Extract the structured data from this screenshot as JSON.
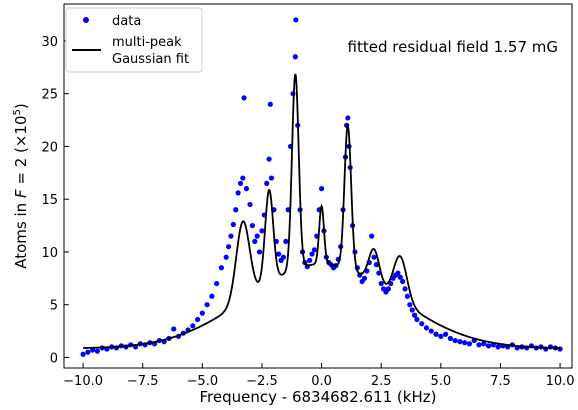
{
  "chart_data": {
    "type": "scatter",
    "xlabel": "Frequency - 6834682.611 (kHz)",
    "ylabel_prefix": "Atoms in ",
    "ylabel_var": "F",
    "ylabel_mid": " = 2 (×10",
    "ylabel_exp": "5",
    "ylabel_suffix": ")",
    "xlim": [
      -10.8,
      10.5
    ],
    "ylim": [
      -1,
      33.5
    ],
    "xticks": [
      -10.0,
      -7.5,
      -5.0,
      -2.5,
      0.0,
      2.5,
      5.0,
      7.5,
      10.0
    ],
    "xtick_labels": [
      "−10.0",
      "−7.5",
      "−5.0",
      "−2.5",
      "0.0",
      "2.5",
      "5.0",
      "7.5",
      "10.0"
    ],
    "yticks": [
      0,
      5,
      10,
      15,
      20,
      25,
      30
    ],
    "ytick_labels": [
      "0",
      "5",
      "10",
      "15",
      "20",
      "25",
      "30"
    ],
    "annotation": "fitted residual field 1.57 mG",
    "legend": {
      "placement": "top-left",
      "data_label": "data",
      "fit_label_line1": "multi-peak",
      "fit_label_line2": "Gaussian fit"
    },
    "colors": {
      "data": "#0000ff",
      "fit": "#000000"
    },
    "fit_model": {
      "background": {
        "amplitude": 8.0,
        "center": 0.0,
        "sigma": 3.1,
        "offset": 0.85
      },
      "peaks": [
        {
          "center": -3.3,
          "amplitude": 7.5,
          "sigma": 0.28
        },
        {
          "center": -2.2,
          "amplitude": 8.8,
          "sigma": 0.17
        },
        {
          "center": -1.1,
          "amplitude": 18.5,
          "sigma": 0.14
        },
        {
          "center": 0.0,
          "amplitude": 5.5,
          "sigma": 0.1
        },
        {
          "center": 1.1,
          "amplitude": 13.6,
          "sigma": 0.14
        },
        {
          "center": 2.2,
          "amplitude": 3.2,
          "sigma": 0.22
        },
        {
          "center": 3.3,
          "amplitude": 4.2,
          "sigma": 0.28
        }
      ]
    },
    "series": [
      {
        "name": "data",
        "points": [
          [
            -10.0,
            0.3
          ],
          [
            -9.8,
            0.5
          ],
          [
            -9.6,
            0.7
          ],
          [
            -9.4,
            0.6
          ],
          [
            -9.2,
            0.9
          ],
          [
            -9.0,
            0.8
          ],
          [
            -8.8,
            1.0
          ],
          [
            -8.6,
            0.9
          ],
          [
            -8.4,
            1.1
          ],
          [
            -8.2,
            1.0
          ],
          [
            -8.0,
            1.2
          ],
          [
            -7.8,
            1.0
          ],
          [
            -7.6,
            1.3
          ],
          [
            -7.4,
            1.2
          ],
          [
            -7.2,
            1.4
          ],
          [
            -7.0,
            1.3
          ],
          [
            -6.8,
            1.6
          ],
          [
            -6.6,
            1.5
          ],
          [
            -6.4,
            1.8
          ],
          [
            -6.2,
            2.7
          ],
          [
            -6.0,
            2.0
          ],
          [
            -5.8,
            2.3
          ],
          [
            -5.6,
            2.6
          ],
          [
            -5.4,
            3.0
          ],
          [
            -5.2,
            3.6
          ],
          [
            -5.0,
            4.2
          ],
          [
            -4.8,
            5.0
          ],
          [
            -4.6,
            5.8
          ],
          [
            -4.4,
            7.0
          ],
          [
            -4.2,
            8.5
          ],
          [
            -4.0,
            9.5
          ],
          [
            -3.9,
            10.5
          ],
          [
            -3.8,
            11.5
          ],
          [
            -3.7,
            12.6
          ],
          [
            -3.6,
            14.0
          ],
          [
            -3.5,
            15.6
          ],
          [
            -3.4,
            16.5
          ],
          [
            -3.3,
            17.0
          ],
          [
            -3.25,
            24.6
          ],
          [
            -3.15,
            16.0
          ],
          [
            -3.0,
            14.5
          ],
          [
            -2.9,
            12.5
          ],
          [
            -2.8,
            11.0
          ],
          [
            -2.7,
            11.5
          ],
          [
            -2.6,
            10.0
          ],
          [
            -2.5,
            12.0
          ],
          [
            -2.4,
            13.5
          ],
          [
            -2.3,
            16.5
          ],
          [
            -2.2,
            18.8
          ],
          [
            -2.15,
            24.0
          ],
          [
            -2.1,
            17.0
          ],
          [
            -2.0,
            14.0
          ],
          [
            -1.9,
            11.0
          ],
          [
            -1.8,
            9.8
          ],
          [
            -1.7,
            9.2
          ],
          [
            -1.6,
            9.5
          ],
          [
            -1.5,
            11.0
          ],
          [
            -1.4,
            14.0
          ],
          [
            -1.3,
            20.0
          ],
          [
            -1.2,
            25.0
          ],
          [
            -1.1,
            28.5
          ],
          [
            -1.08,
            32.0
          ],
          [
            -1.0,
            22.0
          ],
          [
            -0.9,
            14.0
          ],
          [
            -0.8,
            10.0
          ],
          [
            -0.7,
            9.0
          ],
          [
            -0.6,
            8.6
          ],
          [
            -0.5,
            9.2
          ],
          [
            -0.4,
            9.8
          ],
          [
            -0.3,
            10.2
          ],
          [
            -0.2,
            11.5
          ],
          [
            -0.1,
            14.0
          ],
          [
            0.0,
            16.0
          ],
          [
            0.1,
            12.0
          ],
          [
            0.2,
            9.5
          ],
          [
            0.3,
            9.0
          ],
          [
            0.4,
            8.8
          ],
          [
            0.5,
            8.5
          ],
          [
            0.6,
            8.7
          ],
          [
            0.7,
            9.3
          ],
          [
            0.8,
            10.5
          ],
          [
            0.9,
            14.0
          ],
          [
            1.0,
            19.0
          ],
          [
            1.05,
            22.0
          ],
          [
            1.1,
            22.7
          ],
          [
            1.15,
            20.0
          ],
          [
            1.2,
            18.0
          ],
          [
            1.3,
            12.5
          ],
          [
            1.4,
            10.0
          ],
          [
            1.5,
            8.5
          ],
          [
            1.6,
            7.8
          ],
          [
            1.7,
            7.2
          ],
          [
            1.8,
            7.5
          ],
          [
            1.9,
            8.2
          ],
          [
            2.0,
            9.0
          ],
          [
            2.1,
            11.5
          ],
          [
            2.2,
            9.5
          ],
          [
            2.3,
            8.8
          ],
          [
            2.4,
            8.0
          ],
          [
            2.5,
            7.0
          ],
          [
            2.6,
            6.5
          ],
          [
            2.7,
            6.2
          ],
          [
            2.8,
            6.5
          ],
          [
            2.9,
            7.0
          ],
          [
            3.0,
            7.5
          ],
          [
            3.1,
            7.8
          ],
          [
            3.2,
            8.0
          ],
          [
            3.3,
            7.6
          ],
          [
            3.4,
            7.2
          ],
          [
            3.5,
            6.5
          ],
          [
            3.6,
            5.8
          ],
          [
            3.7,
            5.0
          ],
          [
            3.8,
            4.5
          ],
          [
            3.9,
            4.0
          ],
          [
            4.0,
            3.6
          ],
          [
            4.2,
            3.2
          ],
          [
            4.4,
            2.8
          ],
          [
            4.6,
            2.5
          ],
          [
            4.8,
            2.2
          ],
          [
            5.0,
            2.0
          ],
          [
            5.2,
            2.2
          ],
          [
            5.4,
            1.8
          ],
          [
            5.6,
            1.6
          ],
          [
            5.8,
            1.5
          ],
          [
            6.0,
            1.4
          ],
          [
            6.2,
            1.3
          ],
          [
            6.4,
            1.6
          ],
          [
            6.6,
            1.2
          ],
          [
            6.8,
            1.3
          ],
          [
            7.0,
            1.1
          ],
          [
            7.2,
            1.2
          ],
          [
            7.4,
            1.0
          ],
          [
            7.6,
            1.1
          ],
          [
            7.8,
            1.0
          ],
          [
            8.0,
            1.2
          ],
          [
            8.2,
            0.9
          ],
          [
            8.4,
            1.0
          ],
          [
            8.6,
            0.9
          ],
          [
            8.8,
            1.1
          ],
          [
            9.0,
            0.9
          ],
          [
            9.2,
            1.0
          ],
          [
            9.4,
            0.8
          ],
          [
            9.6,
            1.0
          ],
          [
            9.8,
            0.9
          ],
          [
            10.0,
            0.8
          ]
        ]
      },
      {
        "name": "multi-peak Gaussian fit"
      }
    ]
  }
}
